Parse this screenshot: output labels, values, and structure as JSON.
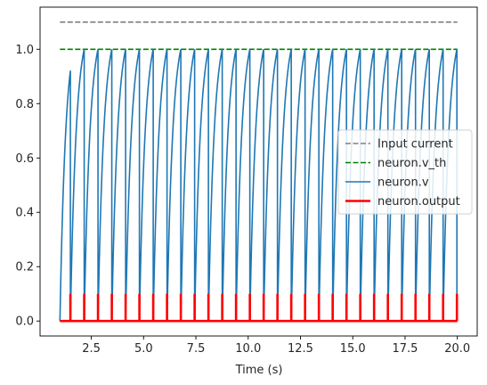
{
  "chart_data": {
    "type": "line",
    "title": "",
    "xlabel": "Time (s)",
    "ylabel": "",
    "xlim": [
      0.05,
      20.95
    ],
    "ylim": [
      -0.055,
      1.155
    ],
    "xticks": [
      2.5,
      5.0,
      7.5,
      10.0,
      12.5,
      15.0,
      17.5,
      20.0
    ],
    "xtick_labels": [
      "2.5",
      "5.0",
      "7.5",
      "10.0",
      "12.5",
      "15.0",
      "17.5",
      "20.0"
    ],
    "yticks": [
      0.0,
      0.2,
      0.4,
      0.6,
      0.8,
      1.0
    ],
    "ytick_labels": [
      "0.0",
      "0.2",
      "0.4",
      "0.6",
      "0.8",
      "1.0"
    ],
    "grid": false,
    "legend_position": "center-right",
    "series": [
      {
        "name": "Input current",
        "color": "#808080",
        "style": "dashed",
        "kind": "constant",
        "y": 1.1,
        "x_range": [
          1.0,
          20.0
        ]
      },
      {
        "name": "neuron.v_th",
        "color": "#008000",
        "style": "dashed",
        "kind": "constant",
        "y": 1.0,
        "x_range": [
          1.0,
          20.0
        ]
      },
      {
        "name": "neuron.v",
        "color": "#1f77b4",
        "style": "solid",
        "kind": "lif_membrane",
        "t_start": 1.0,
        "t_end": 20.0,
        "v_rest": 0.0,
        "v_th": 1.0,
        "drive": 1.1,
        "tau": 0.275,
        "first_spike": 1.5,
        "spike_period": 0.66,
        "end_value": 0.085
      },
      {
        "name": "neuron.output",
        "color": "#ff0000",
        "style": "solid",
        "kind": "spike_train",
        "baseline": 0.0,
        "spike_height": 0.1,
        "spike_times": [
          1.5,
          2.16,
          2.82,
          3.48,
          4.14,
          4.8,
          5.46,
          6.12,
          6.78,
          7.44,
          8.1,
          8.76,
          9.42,
          10.08,
          10.74,
          11.4,
          12.06,
          12.72,
          13.38,
          14.04,
          14.7,
          15.36,
          16.02,
          16.68,
          17.34,
          18.0,
          18.66,
          19.32,
          19.98
        ]
      }
    ]
  }
}
